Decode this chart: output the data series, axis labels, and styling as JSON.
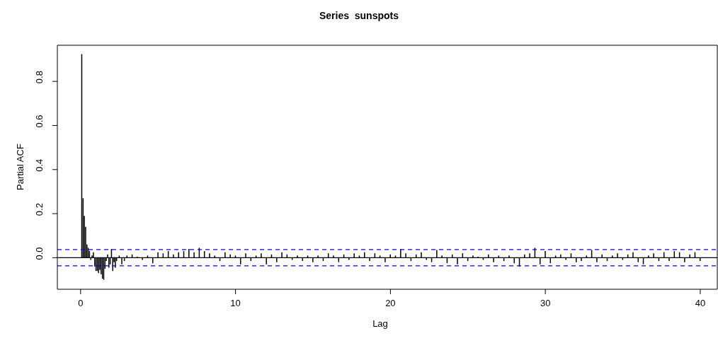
{
  "chart_data": {
    "type": "bar",
    "title": "Series  sunspots",
    "xlabel": "Lag",
    "ylabel": "Partial ACF",
    "x": [
      0.083,
      0.167,
      0.25,
      0.333,
      0.417,
      0.5,
      0.583,
      0.667,
      0.75,
      0.833,
      0.917,
      1.0,
      1.083,
      1.167,
      1.25,
      1.333,
      1.417,
      1.5,
      1.583,
      1.667,
      1.75,
      1.833,
      1.917,
      2.0,
      2.083,
      2.167,
      2.25,
      2.333,
      2.5,
      2.667,
      2.833,
      3.0,
      3.333,
      3.667,
      4.0,
      4.333,
      4.667,
      5.0,
      5.333,
      5.667,
      6.0,
      6.333,
      6.667,
      7.0,
      7.333,
      7.667,
      8.0,
      8.333,
      8.667,
      9.0,
      9.333,
      9.667,
      10.0,
      10.333,
      10.667,
      11.0,
      11.333,
      11.667,
      12.0,
      12.333,
      12.667,
      13.0,
      13.333,
      13.667,
      14.0,
      14.333,
      14.667,
      15.0,
      15.333,
      15.667,
      16.0,
      16.333,
      16.667,
      17.0,
      17.333,
      17.667,
      18.0,
      18.333,
      18.667,
      19.0,
      19.333,
      19.667,
      20.0,
      20.333,
      20.667,
      21.0,
      21.333,
      21.667,
      22.0,
      22.333,
      22.667,
      23.0,
      23.333,
      23.667,
      24.0,
      24.333,
      24.667,
      25.0,
      25.333,
      25.667,
      26.0,
      26.333,
      26.667,
      27.0,
      27.333,
      27.667,
      28.0,
      28.333,
      28.667,
      29.0,
      29.333,
      29.667,
      30.0,
      30.333,
      30.667,
      31.0,
      31.333,
      31.667,
      32.0,
      32.333,
      32.667,
      33.0,
      33.333,
      33.667,
      34.0,
      34.333,
      34.667,
      35.0,
      35.333,
      35.667,
      36.0,
      36.333,
      36.667,
      37.0,
      37.333,
      37.667,
      38.0,
      38.333,
      38.667,
      39.0,
      39.333,
      39.667,
      40.0
    ],
    "values": [
      0.924,
      0.27,
      0.19,
      0.14,
      0.06,
      0.045,
      0.03,
      -0.01,
      0.01,
      0.025,
      -0.04,
      -0.06,
      -0.06,
      -0.07,
      -0.055,
      -0.075,
      -0.095,
      -0.1,
      -0.05,
      -0.015,
      0.015,
      -0.045,
      -0.03,
      0.04,
      -0.06,
      -0.02,
      -0.045,
      -0.015,
      0.01,
      -0.03,
      -0.015,
      0.01,
      0.015,
      0.005,
      -0.01,
      0.01,
      -0.025,
      0.025,
      0.02,
      0.03,
      0.015,
      0.025,
      0.03,
      0.04,
      0.025,
      0.045,
      0.03,
      0.02,
      0.01,
      -0.015,
      0.025,
      0.015,
      0.01,
      -0.03,
      0.02,
      -0.015,
      0.01,
      0.02,
      -0.03,
      0.015,
      -0.02,
      0.025,
      0.015,
      -0.01,
      0.01,
      -0.015,
      0.01,
      -0.02,
      0.01,
      -0.015,
      0.02,
      0.01,
      -0.02,
      0.015,
      -0.01,
      0.02,
      0.01,
      0.025,
      -0.015,
      0.02,
      0.01,
      -0.02,
      0.015,
      0.01,
      0.04,
      0.02,
      -0.015,
      0.015,
      0.025,
      -0.01,
      -0.02,
      0.035,
      0.01,
      -0.025,
      0.015,
      -0.03,
      0.02,
      -0.015,
      0.01,
      0.005,
      -0.01,
      0.015,
      -0.02,
      0.01,
      -0.015,
      0.01,
      -0.025,
      -0.04,
      0.015,
      0.02,
      0.045,
      -0.03,
      0.03,
      -0.025,
      0.01,
      0.015,
      -0.01,
      0.02,
      -0.02,
      -0.015,
      0.01,
      0.035,
      -0.02,
      0.015,
      -0.015,
      0.01,
      0.02,
      -0.01,
      0.015,
      0.025,
      -0.02,
      -0.03,
      0.01,
      0.02,
      -0.015,
      0.025,
      -0.015,
      0.03,
      0.025,
      -0.02,
      0.015,
      0.025,
      -0.015
    ],
    "color": "#000000",
    "xlim": [
      -1.5,
      41.1
    ],
    "xticks": [
      0,
      10,
      20,
      30,
      40
    ],
    "ylim": [
      -0.143,
      0.964
    ],
    "yticks": [
      {
        "value": 0,
        "label": "0.0"
      },
      {
        "value": 0.2,
        "label": "0.2"
      },
      {
        "value": 0.4,
        "label": "0.4"
      },
      {
        "value": 0.6,
        "label": "0.6"
      },
      {
        "value": 0.8,
        "label": "0.8"
      }
    ],
    "ref_lines": [
      {
        "axis": "y",
        "value": 0,
        "color": "#000000",
        "line_style": "solid"
      },
      {
        "axis": "y",
        "value": 0.037,
        "color": "#0000ff",
        "line_style": "dashed"
      },
      {
        "axis": "y",
        "value": -0.037,
        "color": "#0000ff",
        "line_style": "dashed"
      }
    ],
    "grid": false,
    "legend": false
  }
}
